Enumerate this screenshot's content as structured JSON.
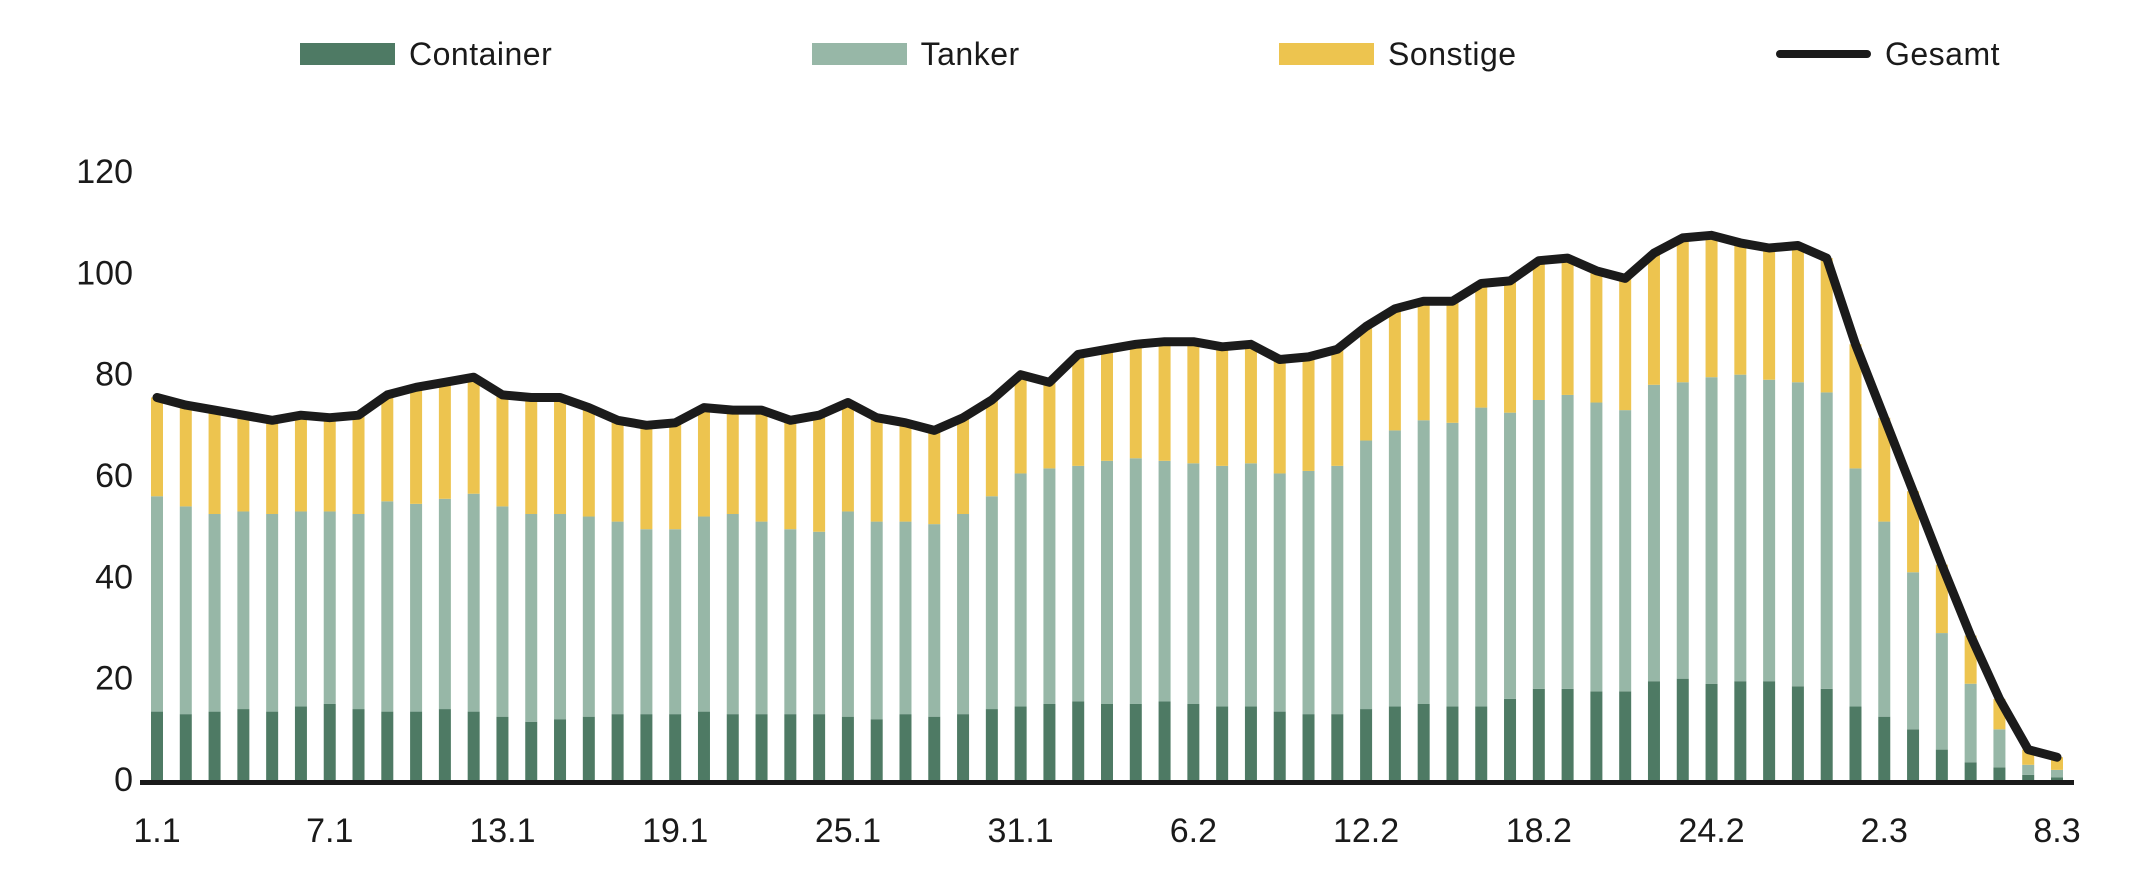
{
  "chart_data": {
    "type": "bar",
    "subtype": "stacked-bars-with-total-line",
    "title": "",
    "xlabel": "",
    "ylabel": "",
    "ylim": [
      0,
      120
    ],
    "yticks": [
      0,
      20,
      40,
      60,
      80,
      100,
      120
    ],
    "grid": false,
    "legend_position": "top-center",
    "categories": [
      "1.1",
      "2.1",
      "3.1",
      "4.1",
      "5.1",
      "6.1",
      "7.1",
      "8.1",
      "9.1",
      "10.1",
      "11.1",
      "12.1",
      "13.1",
      "14.1",
      "15.1",
      "16.1",
      "17.1",
      "18.1",
      "19.1",
      "20.1",
      "21.1",
      "22.1",
      "23.1",
      "24.1",
      "25.1",
      "26.1",
      "27.1",
      "28.1",
      "29.1",
      "30.1",
      "31.1",
      "1.2",
      "2.2",
      "3.2",
      "4.2",
      "5.2",
      "6.2",
      "7.2",
      "8.2",
      "9.2",
      "10.2",
      "11.2",
      "12.2",
      "13.2",
      "14.2",
      "15.2",
      "16.2",
      "17.2",
      "18.2",
      "19.2",
      "20.2",
      "21.2",
      "22.2",
      "23.2",
      "24.2",
      "25.2",
      "26.2",
      "27.2",
      "28.2",
      "1.3",
      "2.3",
      "3.3",
      "4.3",
      "5.3",
      "6.3",
      "7.3",
      "8.3"
    ],
    "x_ticks": {
      "indices": [
        0,
        6,
        12,
        18,
        24,
        30,
        36,
        42,
        48,
        54,
        60,
        66
      ],
      "labels": [
        "1.1",
        "7.1",
        "13.1",
        "19.1",
        "25.1",
        "31.1",
        "6.2",
        "12.2",
        "18.2",
        "24.2",
        "2.3",
        "8.3"
      ]
    },
    "series": [
      {
        "name": "Container",
        "color": "#4E7A64",
        "values": [
          13.5,
          13,
          13.5,
          14,
          13.5,
          14.5,
          15,
          14,
          13.5,
          13.5,
          14,
          13.5,
          12.5,
          11.5,
          12,
          12.5,
          13,
          13,
          13,
          13.5,
          13,
          13,
          13,
          13,
          12.5,
          12,
          13,
          12.5,
          13,
          14,
          14.5,
          15,
          15.5,
          15,
          15,
          15.5,
          15,
          14.5,
          14.5,
          13.5,
          13,
          13,
          14,
          14.5,
          15,
          14.5,
          14.5,
          16,
          18,
          18,
          17.5,
          17.5,
          19.5,
          20,
          19,
          19.5,
          19.5,
          18.5,
          18,
          14.5,
          12.5,
          10,
          6,
          3.5,
          2.5,
          1,
          0.5
        ]
      },
      {
        "name": "Tanker",
        "color": "#97B7A7",
        "values": [
          42.5,
          41,
          39,
          39,
          39,
          38.5,
          38,
          38.5,
          41.5,
          41,
          41.5,
          43,
          41.5,
          41,
          40.5,
          39.5,
          38,
          36.5,
          36.5,
          38.5,
          39.5,
          38,
          36.5,
          36,
          40.5,
          39,
          38,
          38,
          39.5,
          42,
          46,
          46.5,
          46.5,
          48,
          48.5,
          47.5,
          47.5,
          47.5,
          48,
          47,
          48,
          49,
          53,
          54.5,
          56,
          56,
          59,
          56.5,
          57,
          58,
          57,
          55.5,
          58.5,
          58.5,
          60.5,
          60.5,
          59.5,
          60,
          58.5,
          47,
          38.5,
          31,
          23,
          15.5,
          7.5,
          2,
          1.5
        ]
      },
      {
        "name": "Sonstige",
        "color": "#EDC44F",
        "values": [
          19.5,
          20,
          20.5,
          19,
          18.5,
          19,
          18.5,
          19.5,
          21,
          23,
          23,
          23,
          22,
          23,
          23,
          21.5,
          20,
          20.5,
          21,
          21.5,
          20.5,
          22,
          21.5,
          23,
          21.5,
          20.5,
          19.5,
          18.5,
          19,
          19,
          19.5,
          17,
          22,
          22,
          22.5,
          23.5,
          24,
          23.5,
          23.5,
          22.5,
          22.5,
          23,
          22.5,
          24,
          23.5,
          24,
          24.5,
          26,
          27.5,
          27,
          26,
          26,
          26,
          28.5,
          28,
          26,
          26,
          27,
          26.5,
          24.5,
          20.5,
          16,
          13.5,
          9.5,
          6,
          3,
          2.5
        ]
      }
    ],
    "line": {
      "name": "Gesamt",
      "color": "#1B1B1B",
      "values": [
        75.5,
        74,
        73,
        72,
        71,
        72,
        71.5,
        72,
        76,
        77.5,
        78.5,
        79.5,
        76,
        75.5,
        75.5,
        73.5,
        71,
        70,
        70.5,
        73.5,
        73,
        73,
        71,
        72,
        74.5,
        71.5,
        70.5,
        69,
        71.5,
        75,
        80,
        78.5,
        84,
        85,
        86,
        86.5,
        86.5,
        85.5,
        86,
        83,
        83.5,
        85,
        89.5,
        93,
        94.5,
        94.5,
        98,
        98.5,
        102.5,
        103,
        100.5,
        99,
        104,
        107,
        107.5,
        106,
        105,
        105.5,
        103,
        86,
        71.5,
        57,
        42.5,
        28.5,
        16,
        6,
        4.5
      ]
    },
    "axis_color": "#1A1A1A"
  }
}
